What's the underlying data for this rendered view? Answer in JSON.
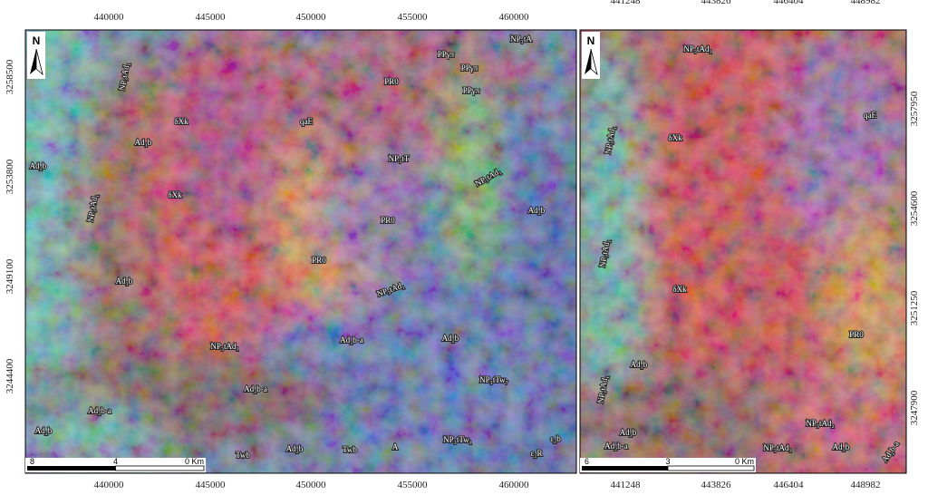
{
  "left_map": {
    "north": "N",
    "top_ticks": [
      440000,
      445000,
      450000,
      455000,
      460000
    ],
    "bottom_ticks": [
      440000,
      445000,
      450000,
      455000,
      460000
    ],
    "left_ticks": [
      3258500,
      3253800,
      3249100,
      3244400
    ],
    "scale": [
      "8",
      "4",
      "0 Km"
    ],
    "labels": [
      "NP₃tA",
      "PPγπ",
      "PPγπ",
      "PR0",
      "PPγπ",
      "NP₃tAd₁",
      "δXk",
      "Ad₁b",
      "δXk",
      "NP₃tAd₁",
      "Ad₂b",
      "Ad₁b",
      "qaE",
      "NP₃tT",
      "NP₃tAd₁",
      "Ad₂b",
      "PR0",
      "PR0",
      "NP₃tAd₁",
      "NP₃tAd₁",
      "Ad₂b-a",
      "Ad₂b",
      "NP₃tTw₇",
      "Ad₂b-a",
      "Ad₂b-a",
      "Ad₂b",
      "Ad₂b",
      "Twb",
      "Twb",
      "A",
      "NP₃tTw₁",
      "ε₂b",
      "ε₂R"
    ]
  },
  "right_map": {
    "north": "N",
    "top_ticks": [
      441248,
      443826,
      446404,
      448982
    ],
    "bottom_ticks": [
      441248,
      443826,
      446404,
      448982
    ],
    "right_ticks": [
      3257950,
      3254600,
      3251250,
      3247900
    ],
    "scale": [
      "6",
      "3",
      "0 Km"
    ],
    "labels": [
      "NP₃tAd₁",
      "NP₃tAd₁",
      "δXk",
      "qaE",
      "NP₃tAd₁",
      "δXk",
      "PR0",
      "Ad₁b",
      "NP₃tAd₁",
      "Ad₂b",
      "Ad₂b-a",
      "NP₃tAd₂",
      "NP₃tAd₁",
      "Ad₂b",
      "Ad₂b-a"
    ]
  }
}
